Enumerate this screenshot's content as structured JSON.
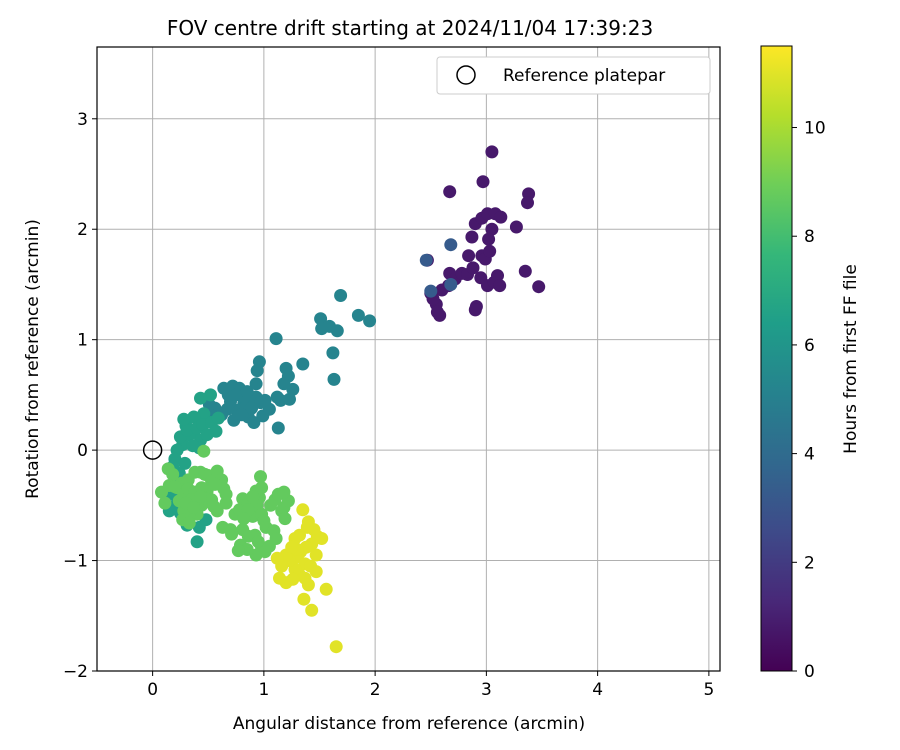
{
  "chart_data": {
    "type": "scatter",
    "title": "FOV centre drift starting at 2024/11/04 17:39:23",
    "xlabel": "Angular distance from reference (arcmin)",
    "ylabel": "Rotation from reference (arcmin)",
    "xlim": [
      -0.5,
      5.1
    ],
    "ylim": [
      -2,
      3.65
    ],
    "xticks": [
      "0",
      "1",
      "2",
      "3",
      "4",
      "5"
    ],
    "yticks": [
      "−2",
      "−1",
      "0",
      "1",
      "2",
      "3"
    ],
    "grid": true,
    "legend": {
      "position": "top-right",
      "entries": [
        "Reference platepar"
      ]
    },
    "reference_point": {
      "x": 0,
      "y": 0
    },
    "colorbar": {
      "label": "Hours from first FF file",
      "range": [
        0,
        11.5
      ],
      "ticks": [
        "0",
        "2",
        "4",
        "6",
        "8",
        "10"
      ],
      "colormap": "viridis",
      "stops": [
        "#440154",
        "#482878",
        "#3e4a89",
        "#31688e",
        "#26828e",
        "#1f9e89",
        "#35b779",
        "#6ece58",
        "#b5de2b",
        "#fde725"
      ]
    },
    "clusters": [
      {
        "hours": 0.8,
        "points": [
          [
            2.47,
            1.72
          ],
          [
            2.5,
            1.42
          ],
          [
            2.55,
            1.32
          ],
          [
            2.58,
            1.22
          ],
          [
            2.52,
            1.37
          ],
          [
            2.66,
            1.49
          ],
          [
            2.6,
            1.45
          ],
          [
            2.67,
            1.6
          ],
          [
            2.72,
            1.55
          ],
          [
            2.78,
            1.6
          ],
          [
            2.83,
            1.59
          ],
          [
            2.88,
            1.65
          ],
          [
            2.91,
            1.3
          ],
          [
            2.9,
            1.27
          ],
          [
            2.95,
            1.56
          ],
          [
            3.01,
            1.49
          ],
          [
            3.07,
            1.52
          ],
          [
            3.1,
            1.58
          ],
          [
            3.12,
            1.49
          ],
          [
            2.84,
            1.76
          ],
          [
            2.87,
            1.93
          ],
          [
            2.9,
            2.05
          ],
          [
            2.96,
            2.1
          ],
          [
            3.01,
            2.14
          ],
          [
            3.05,
            2.0
          ],
          [
            3.02,
            1.91
          ],
          [
            2.96,
            1.76
          ],
          [
            2.99,
            1.73
          ],
          [
            3.08,
            2.14
          ],
          [
            3.13,
            2.11
          ],
          [
            3.03,
            1.8
          ],
          [
            3.27,
            2.02
          ],
          [
            3.38,
            2.32
          ],
          [
            3.37,
            2.24
          ],
          [
            3.35,
            1.62
          ],
          [
            3.47,
            1.48
          ],
          [
            2.67,
            2.34
          ],
          [
            2.97,
            2.43
          ],
          [
            3.05,
            2.7
          ],
          [
            2.56,
            1.25
          ]
        ]
      },
      {
        "hours": 3.3,
        "points": [
          [
            2.46,
            1.72
          ],
          [
            2.68,
            1.86
          ],
          [
            2.5,
            1.44
          ],
          [
            2.68,
            1.5
          ]
        ]
      },
      {
        "hours": 5.2,
        "points": [
          [
            1.69,
            1.4
          ],
          [
            1.85,
            1.22
          ],
          [
            1.95,
            1.17
          ],
          [
            1.51,
            1.19
          ],
          [
            1.52,
            1.1
          ],
          [
            1.59,
            1.12
          ],
          [
            1.66,
            1.08
          ],
          [
            1.62,
            0.88
          ],
          [
            1.63,
            0.64
          ],
          [
            1.35,
            0.78
          ],
          [
            1.11,
            1.01
          ],
          [
            1.2,
            0.74
          ],
          [
            1.22,
            0.67
          ],
          [
            1.26,
            0.55
          ],
          [
            1.18,
            0.6
          ],
          [
            1.15,
            0.45
          ],
          [
            1.12,
            0.48
          ],
          [
            1.23,
            0.46
          ],
          [
            1.13,
            0.2
          ],
          [
            0.99,
            0.31
          ],
          [
            0.93,
            0.48
          ],
          [
            0.88,
            0.44
          ],
          [
            0.82,
            0.42
          ],
          [
            0.76,
            0.36
          ],
          [
            0.7,
            0.44
          ],
          [
            0.68,
            0.5
          ],
          [
            0.73,
            0.27
          ],
          [
            0.64,
            0.56
          ],
          [
            0.72,
            0.58
          ],
          [
            0.78,
            0.56
          ],
          [
            0.82,
            0.48
          ],
          [
            0.93,
            0.6
          ],
          [
            1.05,
            0.37
          ],
          [
            0.86,
            0.3
          ],
          [
            0.91,
            0.25
          ],
          [
            0.97,
            0.43
          ],
          [
            0.83,
            0.38
          ],
          [
            0.75,
            0.5
          ],
          [
            0.89,
            0.38
          ],
          [
            1.01,
            0.45
          ],
          [
            0.94,
            0.72
          ],
          [
            0.96,
            0.8
          ],
          [
            0.85,
            0.53
          ],
          [
            0.8,
            0.32
          ],
          [
            0.62,
            0.32
          ],
          [
            0.67,
            0.37
          ],
          [
            0.56,
            0.38
          ],
          [
            0.53,
            0.31
          ],
          [
            0.51,
            0.41
          ]
        ]
      },
      {
        "hours": 6.6,
        "points": [
          [
            0.52,
            0.5
          ],
          [
            0.43,
            0.47
          ],
          [
            0.46,
            0.33
          ],
          [
            0.37,
            0.3
          ],
          [
            0.37,
            0.16
          ],
          [
            0.43,
            0.09
          ],
          [
            0.33,
            0.14
          ],
          [
            0.27,
            0.05
          ],
          [
            0.22,
            0.0
          ],
          [
            0.2,
            -0.08
          ],
          [
            0.25,
            0.12
          ],
          [
            0.3,
            0.22
          ],
          [
            0.31,
            0.18
          ],
          [
            0.28,
            0.28
          ],
          [
            0.4,
            0.2
          ],
          [
            0.45,
            0.23
          ],
          [
            0.53,
            0.25
          ],
          [
            0.59,
            0.29
          ],
          [
            0.57,
            0.17
          ],
          [
            0.49,
            0.14
          ],
          [
            0.42,
            0.02
          ],
          [
            0.36,
            0.04
          ],
          [
            0.29,
            -0.12
          ],
          [
            0.24,
            -0.21
          ],
          [
            0.2,
            -0.3
          ],
          [
            0.17,
            -0.4
          ],
          [
            0.21,
            -0.5
          ],
          [
            0.15,
            -0.55
          ],
          [
            0.25,
            -0.57
          ],
          [
            0.35,
            -0.5
          ],
          [
            0.4,
            -0.83
          ],
          [
            0.42,
            -0.7
          ],
          [
            0.31,
            -0.68
          ],
          [
            0.48,
            -0.63
          ],
          [
            0.23,
            -0.42
          ],
          [
            0.18,
            -0.15
          ]
        ]
      },
      {
        "hours": 8.7,
        "points": [
          [
            0.08,
            -0.38
          ],
          [
            0.11,
            -0.48
          ],
          [
            0.14,
            -0.17
          ],
          [
            0.18,
            -0.22
          ],
          [
            0.15,
            -0.32
          ],
          [
            0.22,
            -0.34
          ],
          [
            0.26,
            -0.3
          ],
          [
            0.32,
            -0.27
          ],
          [
            0.38,
            -0.2
          ],
          [
            0.43,
            -0.2
          ],
          [
            0.47,
            -0.22
          ],
          [
            0.5,
            -0.23
          ],
          [
            0.53,
            -0.28
          ],
          [
            0.58,
            -0.19
          ],
          [
            0.62,
            -0.27
          ],
          [
            0.64,
            -0.35
          ],
          [
            0.66,
            -0.4
          ],
          [
            0.66,
            -0.48
          ],
          [
            0.58,
            -0.55
          ],
          [
            0.53,
            -0.45
          ],
          [
            0.49,
            -0.37
          ],
          [
            0.44,
            -0.5
          ],
          [
            0.4,
            -0.58
          ],
          [
            0.33,
            -0.6
          ],
          [
            0.28,
            -0.55
          ],
          [
            0.24,
            -0.46
          ],
          [
            0.2,
            -0.33
          ],
          [
            0.28,
            -0.4
          ],
          [
            0.32,
            -0.35
          ],
          [
            0.38,
            -0.38
          ],
          [
            0.44,
            -0.34
          ],
          [
            0.48,
            -0.44
          ],
          [
            0.35,
            -0.45
          ],
          [
            0.3,
            -0.48
          ],
          [
            0.27,
            -0.63
          ],
          [
            0.33,
            -0.66
          ],
          [
            0.37,
            -0.52
          ],
          [
            0.43,
            -0.42
          ],
          [
            0.56,
            -0.31
          ],
          [
            0.46,
            -0.01
          ],
          [
            0.7,
            -0.72
          ],
          [
            0.74,
            -0.58
          ],
          [
            0.78,
            -0.54
          ],
          [
            0.81,
            -0.44
          ],
          [
            0.86,
            -0.48
          ],
          [
            0.9,
            -0.6
          ],
          [
            0.94,
            -0.5
          ],
          [
            0.96,
            -0.43
          ],
          [
            0.98,
            -0.58
          ],
          [
            1.0,
            -0.64
          ],
          [
            1.02,
            -0.7
          ],
          [
            1.06,
            -0.5
          ],
          [
            1.1,
            -0.45
          ],
          [
            1.13,
            -0.4
          ],
          [
            1.16,
            -0.55
          ],
          [
            1.18,
            -0.52
          ],
          [
            1.19,
            -0.62
          ],
          [
            1.22,
            -0.46
          ],
          [
            1.18,
            -0.38
          ],
          [
            0.97,
            -0.24
          ],
          [
            0.98,
            -0.34
          ],
          [
            0.93,
            -0.37
          ],
          [
            0.9,
            -0.42
          ],
          [
            0.86,
            -0.54
          ],
          [
            0.82,
            -0.62
          ],
          [
            0.81,
            -0.72
          ],
          [
            0.79,
            -0.86
          ],
          [
            0.86,
            -0.78
          ],
          [
            0.92,
            -0.77
          ],
          [
            0.95,
            -0.83
          ],
          [
            0.98,
            -0.88
          ],
          [
            1.01,
            -0.92
          ],
          [
            1.05,
            -0.87
          ],
          [
            1.09,
            -0.73
          ],
          [
            1.11,
            -0.8
          ],
          [
            0.93,
            -0.95
          ],
          [
            0.85,
            -0.9
          ],
          [
            0.77,
            -0.91
          ],
          [
            0.71,
            -0.76
          ],
          [
            0.63,
            -0.7
          ],
          [
            0.55,
            -0.51
          ]
        ]
      },
      {
        "hours": 11.0,
        "points": [
          [
            1.35,
            -0.54
          ],
          [
            1.4,
            -0.65
          ],
          [
            1.45,
            -0.72
          ],
          [
            1.48,
            -0.78
          ],
          [
            1.52,
            -0.8
          ],
          [
            1.43,
            -0.85
          ],
          [
            1.38,
            -0.88
          ],
          [
            1.33,
            -0.92
          ],
          [
            1.3,
            -0.97
          ],
          [
            1.37,
            -1.03
          ],
          [
            1.42,
            -1.05
          ],
          [
            1.47,
            -1.1
          ],
          [
            1.37,
            -1.16
          ],
          [
            1.32,
            -1.13
          ],
          [
            1.28,
            -1.08
          ],
          [
            1.23,
            -1.0
          ],
          [
            1.2,
            -0.95
          ],
          [
            1.26,
            -1.17
          ],
          [
            1.2,
            -1.2
          ],
          [
            1.14,
            -1.16
          ],
          [
            1.16,
            -1.05
          ],
          [
            1.12,
            -0.98
          ],
          [
            1.28,
            -0.8
          ],
          [
            1.32,
            -0.77
          ],
          [
            1.4,
            -1.22
          ],
          [
            1.36,
            -1.35
          ],
          [
            1.43,
            -1.45
          ],
          [
            1.56,
            -1.26
          ],
          [
            1.65,
            -1.78
          ],
          [
            1.3,
            -0.9
          ],
          [
            1.39,
            -0.7
          ],
          [
            1.47,
            -0.95
          ],
          [
            1.25,
            -0.88
          ]
        ]
      }
    ]
  }
}
